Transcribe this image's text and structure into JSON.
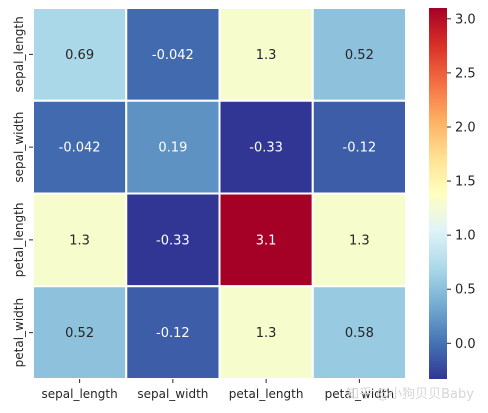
{
  "chart_data": {
    "type": "heatmap",
    "rows": [
      "sepal_length",
      "sepal_width",
      "petal_length",
      "petal_width"
    ],
    "columns": [
      "sepal_length",
      "sepal_width",
      "petal_length",
      "petal_width"
    ],
    "values": [
      [
        0.69,
        -0.042,
        1.3,
        0.52
      ],
      [
        -0.042,
        0.19,
        -0.33,
        -0.12
      ],
      [
        1.3,
        -0.33,
        3.1,
        1.3
      ],
      [
        0.52,
        -0.12,
        1.3,
        0.58
      ]
    ],
    "labels": [
      [
        "0.69",
        "-0.042",
        "1.3",
        "0.52"
      ],
      [
        "-0.042",
        "0.19",
        "-0.33",
        "-0.12"
      ],
      [
        "1.3",
        "-0.33",
        "3.1",
        "1.3"
      ],
      [
        "0.52",
        "-0.12",
        "1.3",
        "0.58"
      ]
    ],
    "colormap": "RdYlBu_r",
    "color_range": [
      -0.33,
      3.1
    ],
    "colorbar": {
      "ticks": [
        0.0,
        0.5,
        1.0,
        1.5,
        2.0,
        2.5,
        3.0
      ],
      "tick_labels": [
        "0.0",
        "0.5",
        "1.0",
        "1.5",
        "2.0",
        "2.5",
        "3.0"
      ]
    },
    "cell_border_color": "#ffffff",
    "grid": false
  },
  "watermark": "知乎 @小狗贝贝Baby"
}
